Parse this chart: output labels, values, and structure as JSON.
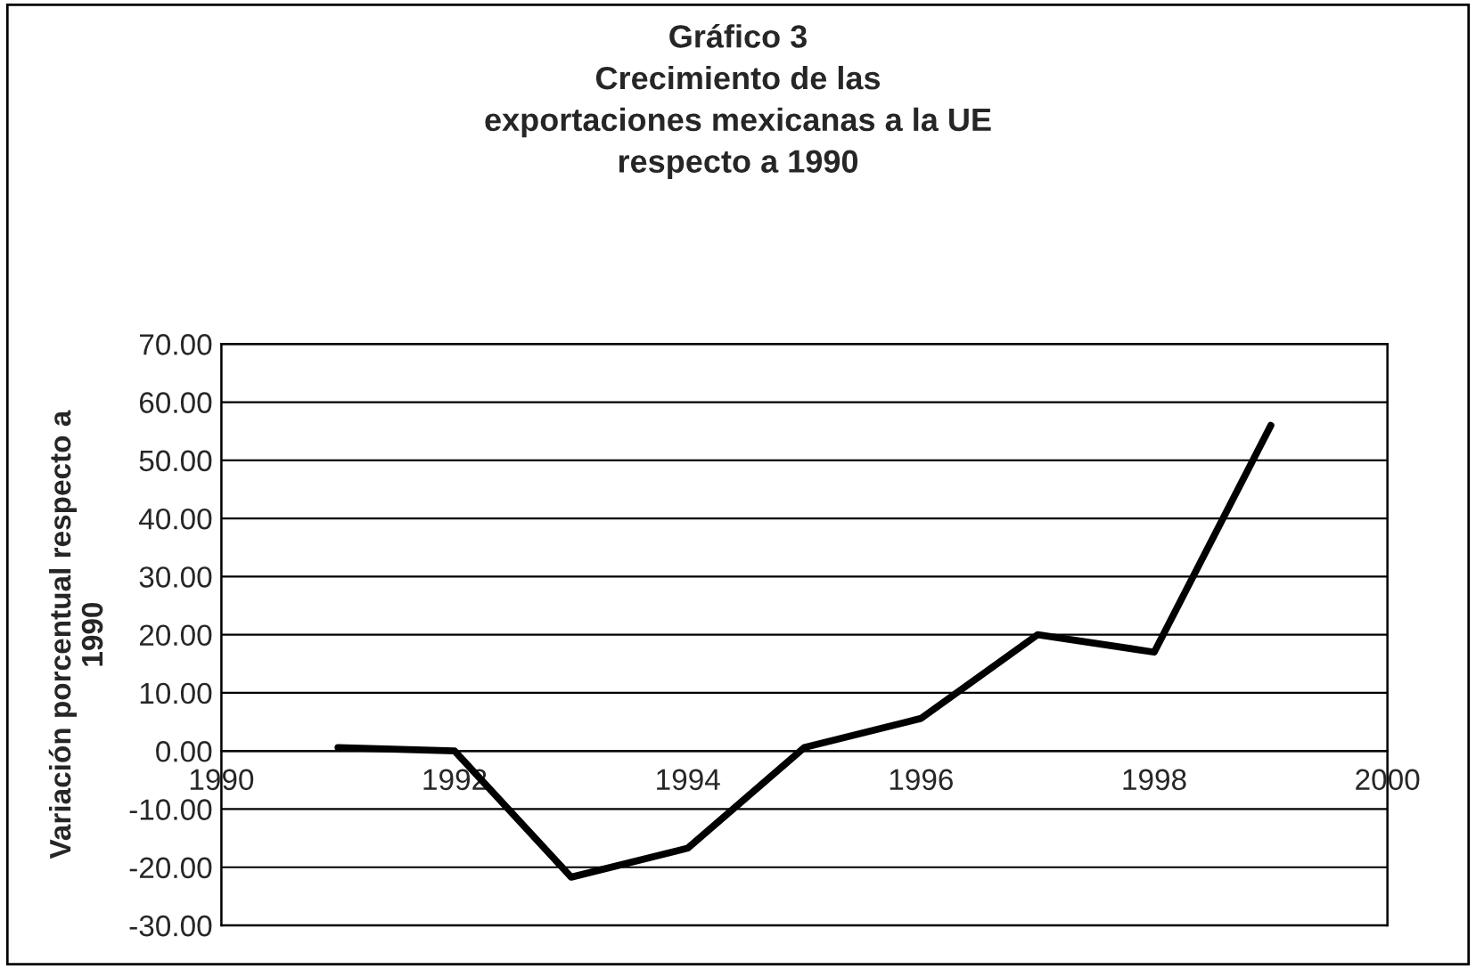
{
  "chart_data": {
    "type": "line",
    "title": "Gráfico 3\nCrecimiento de las\nexportaciones mexicanas a la UE\nrespecto a 1990",
    "ylabel": "Variación porcentual respecto a\n1990",
    "x": [
      1991,
      1992,
      1993,
      1994,
      1995,
      1996,
      1997,
      1998,
      1999
    ],
    "series": [
      {
        "color": "#000000",
        "values": [
          0.6,
          0.0,
          -21.7,
          -16.7,
          0.6,
          5.6,
          20.0,
          17.0,
          56.0
        ]
      }
    ],
    "xlim": [
      1990,
      2000
    ],
    "xticks": [
      1990,
      1992,
      1994,
      1996,
      1998,
      2000
    ],
    "ylim": [
      -30,
      70
    ],
    "yticks": [
      {
        "value": -30,
        "label": "-30.00"
      },
      {
        "value": -20,
        "label": "-20.00"
      },
      {
        "value": -10,
        "label": "-10.00"
      },
      {
        "value": 0,
        "label": "0.00"
      },
      {
        "value": 10,
        "label": "10.00"
      },
      {
        "value": 20,
        "label": "20.00"
      },
      {
        "value": 30,
        "label": "30.00"
      },
      {
        "value": 40,
        "label": "40.00"
      },
      {
        "value": 50,
        "label": "50.00"
      },
      {
        "value": 60,
        "label": "60.00"
      },
      {
        "value": 70,
        "label": "70.00"
      }
    ],
    "grid": "y",
    "legend": false,
    "marker": "none",
    "line_style": "solid"
  }
}
